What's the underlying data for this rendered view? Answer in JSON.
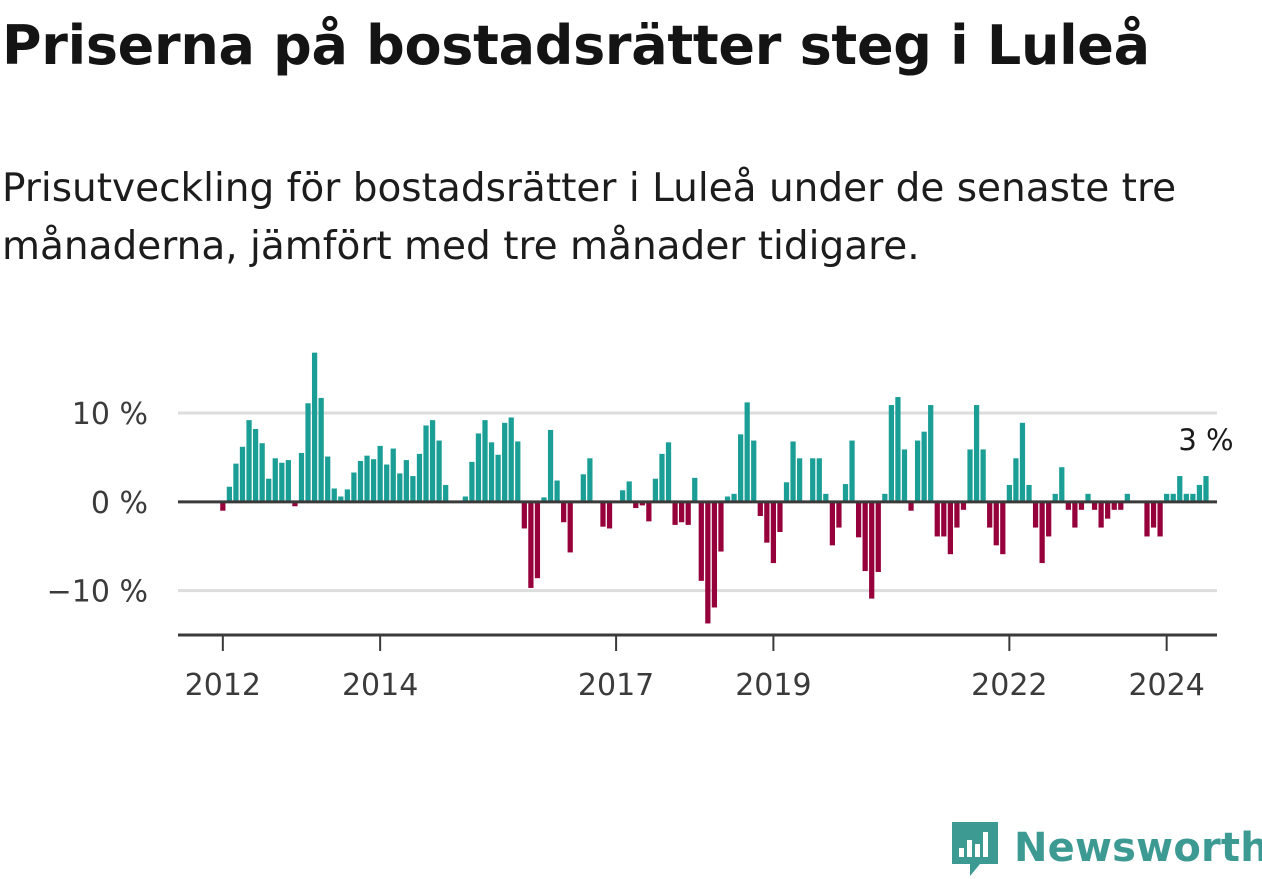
{
  "title": "Priserna på bostadsrätter steg i Luleå",
  "subtitle": "Prisutveckling för bostadsrätter i Luleå under de senaste tre månaderna, jämfört med tre månader tidigare.",
  "brand": {
    "name": "Newsworthy",
    "icon": "newsworthy-logo-icon"
  },
  "colors": {
    "positive": "#1a9e95",
    "negative": "#96003b",
    "grid": "#dddddd",
    "axis": "#3a3a3a"
  },
  "chart_data": {
    "type": "bar",
    "title": "",
    "xlabel": "",
    "ylabel": "",
    "ylim": [
      -15,
      18
    ],
    "x_range": [
      2011.43,
      2024.64
    ],
    "y_ticks": [
      {
        "value": 10,
        "label": "10 %"
      },
      {
        "value": 0,
        "label": "0 %"
      },
      {
        "value": -10,
        "label": "−10 %"
      }
    ],
    "x_ticks": [
      {
        "value": 2012,
        "label": "2012"
      },
      {
        "value": 2014,
        "label": "2014"
      },
      {
        "value": 2017,
        "label": "2017"
      },
      {
        "value": 2019,
        "label": "2019"
      },
      {
        "value": 2022,
        "label": "2022"
      },
      {
        "value": 2024,
        "label": "2024"
      }
    ],
    "end_label": "3 %",
    "start": "2012-01",
    "series": [
      {
        "name": "Prisutveckling (%)",
        "values": [
          -1.0,
          1.7,
          4.3,
          6.2,
          9.2,
          8.2,
          6.6,
          2.6,
          4.9,
          4.4,
          4.7,
          -0.5,
          5.5,
          11.1,
          16.8,
          11.7,
          5.1,
          1.5,
          0.6,
          1.4,
          3.3,
          4.6,
          5.2,
          4.8,
          6.3,
          4.2,
          6.0,
          3.2,
          4.7,
          2.9,
          5.4,
          8.6,
          9.2,
          6.9,
          1.9,
          0,
          0,
          0.6,
          4.5,
          7.7,
          9.2,
          6.7,
          5.3,
          8.9,
          9.5,
          6.8,
          -3.0,
          -9.7,
          -8.6,
          0.5,
          8.1,
          2.4,
          -2.3,
          -5.7,
          0,
          3.1,
          4.9,
          0,
          -2.8,
          -3.0,
          0,
          1.3,
          2.3,
          -0.7,
          -0.4,
          -2.2,
          2.6,
          5.4,
          6.7,
          -2.6,
          -2.3,
          -2.6,
          2.7,
          -8.9,
          -13.7,
          -11.9,
          -5.6,
          0.6,
          0.9,
          7.6,
          11.2,
          6.9,
          -1.6,
          -4.6,
          -6.9,
          -3.4,
          2.2,
          6.8,
          4.9,
          0,
          4.9,
          4.9,
          0.9,
          -4.9,
          -2.9,
          2.0,
          6.9,
          -4.0,
          -7.8,
          -10.9,
          -7.9,
          0.9,
          10.9,
          11.8,
          5.9,
          -1.0,
          6.9,
          7.9,
          10.9,
          -3.9,
          -3.9,
          -5.9,
          -2.9,
          -0.9,
          5.9,
          10.9,
          5.9,
          -2.9,
          -4.9,
          -5.9,
          1.9,
          4.9,
          8.9,
          1.9,
          -2.9,
          -6.9,
          -3.9,
          0.9,
          3.9,
          -0.9,
          -2.9,
          -0.9,
          0.9,
          -0.9,
          -2.9,
          -1.9,
          -0.9,
          -0.9,
          0.9,
          0,
          0,
          -3.9,
          -2.9,
          -3.9,
          0.9,
          0.9,
          2.9,
          0.9,
          0.9,
          1.9,
          2.9
        ]
      }
    ]
  }
}
